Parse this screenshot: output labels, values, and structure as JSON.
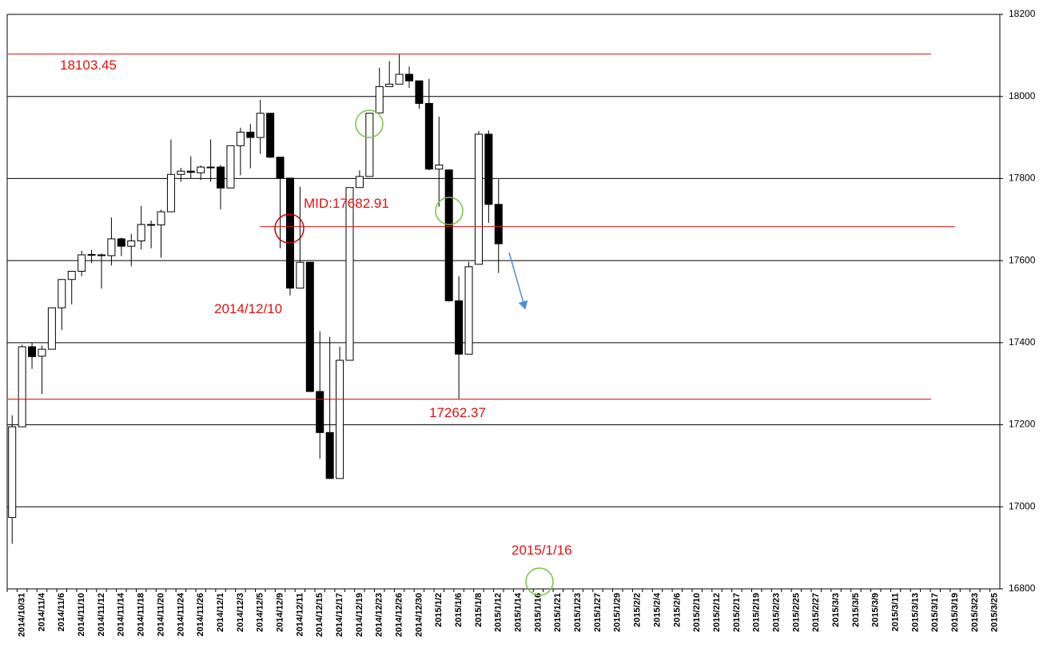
{
  "chart_data": {
    "type": "candlestick",
    "categories": [
      null,
      "2014/10/31",
      null,
      "2014/11/4",
      null,
      "2014/11/6",
      null,
      "2014/11/10",
      null,
      "2014/11/12",
      null,
      "2014/11/14",
      null,
      "2014/11/18",
      null,
      "2014/11/20",
      null,
      "2014/11/24",
      null,
      "2014/11/26",
      null,
      "2014/12/1",
      null,
      "2014/12/3",
      null,
      "2014/12/5",
      null,
      "2014/12/9",
      null,
      "2014/12/11",
      null,
      "2014/12/15",
      null,
      "2014/12/17",
      null,
      "2014/12/19",
      null,
      "2014/12/23",
      null,
      "2014/12/26",
      null,
      "2014/12/30",
      null,
      "2015/1/2",
      null,
      "2015/1/6",
      null,
      "2015/1/8",
      null,
      "2015/1/12",
      null,
      "2015/1/14",
      null,
      "2015/1/16",
      null,
      "2015/1/21",
      null,
      "2015/1/23",
      null,
      "2015/1/27",
      null,
      "2015/1/29",
      null,
      "2015/2/2",
      null,
      "2015/2/4",
      null,
      "2015/2/6",
      null,
      "2015/2/10",
      null,
      "2015/2/12",
      null,
      "2015/2/17",
      null,
      "2015/2/19",
      null,
      "2015/2/23",
      null,
      "2015/2/25",
      null,
      "2015/2/27",
      null,
      "2015/3/3",
      null,
      "2015/3/5",
      null,
      "2015/3/9",
      null,
      "2015/3/11",
      null,
      "2015/3/13",
      null,
      "2015/3/17",
      null,
      "2015/3/19",
      null,
      "2015/3/23",
      null,
      "2015/3/25"
    ],
    "open": [
      16974,
      17195,
      17390,
      17367,
      17384,
      17485,
      17554,
      17574,
      17614,
      17614,
      17612,
      17653,
      17635,
      17648,
      17688,
      17687,
      17719,
      17810,
      17818,
      17814,
      17828,
      17828,
      17777,
      17880,
      17913,
      17900,
      17959,
      17852,
      17801,
      17533,
      17596,
      17281,
      17181,
      17069,
      17357,
      17778,
      17805,
      17960,
      18024,
      18030,
      18054,
      18038,
      17983,
      17823,
      17821,
      17502,
      17372,
      17591,
      17908,
      17737,
      null,
      null,
      null,
      null,
      null,
      null,
      null,
      null,
      null,
      null,
      null,
      null,
      null,
      null,
      null,
      null,
      null,
      null,
      null,
      null,
      null,
      null,
      null,
      null,
      null,
      null,
      null,
      null,
      null,
      null,
      null,
      null,
      null,
      null,
      null,
      null,
      null,
      null,
      null,
      null,
      null,
      null,
      null,
      null,
      null,
      null,
      null,
      null,
      null,
      null
    ],
    "high": [
      17223,
      17395,
      17400,
      17393,
      17486,
      17555,
      17574,
      17624,
      17626,
      17617,
      17705,
      17656,
      17665,
      17733,
      17698,
      17724,
      17895,
      17826,
      17854,
      17832,
      17895,
      17833,
      17880,
      17924,
      17933,
      17992,
      17959,
      17852,
      17801,
      17780,
      17596,
      17428,
      17414,
      17390,
      17778,
      17820,
      17960,
      18070,
      18086,
      18103.45,
      18073,
      18038,
      18043,
      17951,
      17821,
      17562,
      17597,
      17916,
      17917,
      17798,
      null,
      null,
      null,
      null,
      null,
      null,
      null,
      null,
      null,
      null,
      null,
      null,
      null,
      null,
      null,
      null,
      null,
      null,
      null,
      null,
      null,
      null,
      null,
      null,
      null,
      null,
      null,
      null,
      null,
      null,
      null,
      null,
      null,
      null,
      null,
      null,
      null,
      null,
      null,
      null,
      null,
      null,
      null,
      null,
      null,
      null,
      null,
      null,
      null,
      null
    ],
    "low": [
      16910,
      17195,
      17336,
      17275,
      17384,
      17431,
      17493,
      17562,
      17594,
      17532,
      17588,
      17611,
      17586,
      17627,
      17630,
      17607,
      17719,
      17792,
      17800,
      17796,
      17792,
      17725,
      17777,
      17808,
      17825,
      17860,
      17850,
      17630,
      17515,
      17533,
      17280,
      17117,
      17068,
      17069,
      17357,
      17778,
      17805,
      17960,
      18024,
      18030,
      18021,
      17970,
      17820,
      17731,
      17500,
      17262.37,
      17372,
      17591,
      17692,
      17570,
      null,
      null,
      null,
      null,
      null,
      null,
      null,
      null,
      null,
      null,
      null,
      null,
      null,
      null,
      null,
      null,
      null,
      null,
      null,
      null,
      null,
      null,
      null,
      null,
      null,
      null,
      null,
      null,
      null,
      null,
      null,
      null,
      null,
      null,
      null,
      null,
      null,
      null,
      null,
      null,
      null,
      null,
      null,
      null,
      null,
      null,
      null,
      null,
      null,
      null
    ],
    "close": [
      17195,
      17390,
      17366,
      17384,
      17485,
      17554,
      17574,
      17614,
      17615,
      17612,
      17653,
      17635,
      17648,
      17688,
      17686,
      17719,
      17810,
      17818,
      17815,
      17828,
      17828,
      17777,
      17880,
      17913,
      17900,
      17959,
      17852,
      17801,
      17533,
      17596,
      17281,
      17181,
      17069,
      17357,
      17778,
      17805,
      17959,
      18024,
      18030,
      18054,
      18038,
      17983,
      17823,
      17833,
      17502,
      17372,
      17585,
      17908,
      17737,
      17641,
      null,
      null,
      null,
      null,
      null,
      null,
      null,
      null,
      null,
      null,
      null,
      null,
      null,
      null,
      null,
      null,
      null,
      null,
      null,
      null,
      null,
      null,
      null,
      null,
      null,
      null,
      null,
      null,
      null,
      null,
      null,
      null,
      null,
      null,
      null,
      null,
      null,
      null,
      null,
      null,
      null,
      null,
      null,
      null,
      null,
      null,
      null,
      null,
      null,
      null
    ],
    "up_color": "#ffffff",
    "down_color": "#000000",
    "ylim": [
      16800,
      18200
    ],
    "yticks": [
      16800,
      17000,
      17200,
      17400,
      17600,
      17800,
      18000,
      18200
    ],
    "grid": true,
    "hlines": [
      {
        "value": 18103.45,
        "label": "18103.45"
      },
      {
        "value": 17682.91,
        "label": "MID:17682.91"
      },
      {
        "value": 17262.37,
        "label": "17262.37"
      }
    ],
    "annotations": [
      "2014/12/10",
      "2015/1/16"
    ],
    "annotation_color": "#e01010"
  }
}
